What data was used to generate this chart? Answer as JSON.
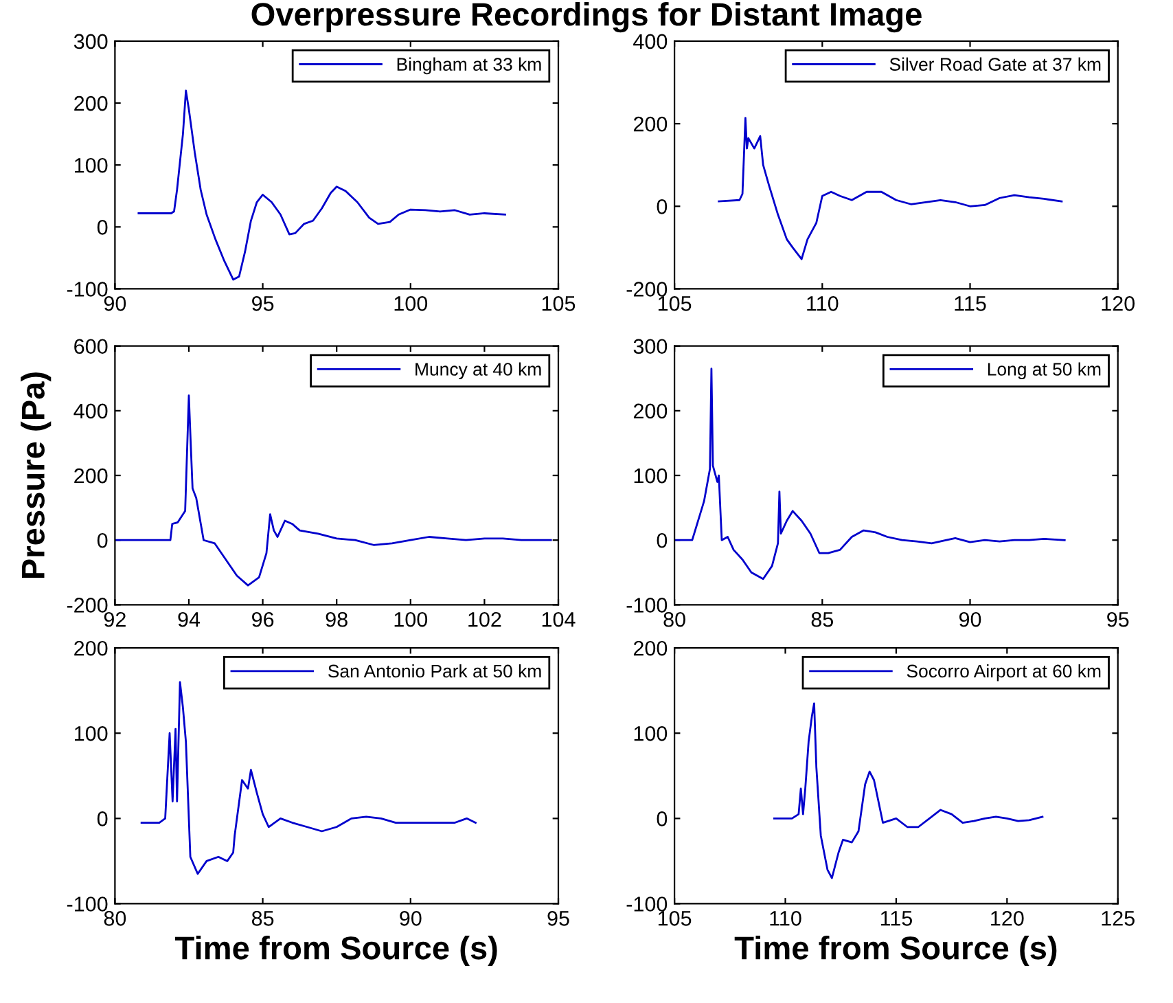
{
  "chart_data": [
    {
      "type": "line",
      "title": "Overpressure Recordings for Distant Image",
      "xlim": [
        90,
        105
      ],
      "ylim": [
        -100,
        300
      ],
      "xticks": [
        90,
        95,
        100,
        105
      ],
      "yticks": [
        -100,
        0,
        100,
        200,
        300
      ],
      "legend": "top right",
      "grid": false,
      "series": [
        {
          "name": "Bingham at 33 km",
          "color": "#0000cc",
          "x": [
            90.8,
            91.5,
            91.9,
            92.0,
            92.1,
            92.3,
            92.4,
            92.5,
            92.7,
            92.9,
            93.1,
            93.4,
            93.7,
            94.0,
            94.2,
            94.4,
            94.6,
            94.8,
            95.0,
            95.3,
            95.6,
            95.9,
            96.1,
            96.4,
            96.7,
            97.0,
            97.3,
            97.5,
            97.8,
            98.2,
            98.6,
            98.9,
            99.3,
            99.6,
            100.0,
            100.5,
            101.0,
            101.5,
            102.0,
            102.5,
            103.2
          ],
          "values": [
            22,
            22,
            22,
            25,
            60,
            150,
            220,
            190,
            120,
            60,
            20,
            -20,
            -55,
            -85,
            -80,
            -40,
            10,
            40,
            52,
            40,
            20,
            -12,
            -10,
            5,
            10,
            30,
            55,
            65,
            58,
            40,
            15,
            5,
            8,
            20,
            28,
            27,
            25,
            27,
            20,
            22,
            20
          ]
        }
      ]
    },
    {
      "type": "line",
      "xlim": [
        105,
        120
      ],
      "ylim": [
        -200,
        400
      ],
      "xticks": [
        105,
        110,
        115,
        120
      ],
      "yticks": [
        -200,
        0,
        200,
        400
      ],
      "legend": "top right",
      "grid": false,
      "series": [
        {
          "name": "Silver Road Gate at 37 km",
          "color": "#0000cc",
          "x": [
            106.5,
            107.2,
            107.3,
            107.4,
            107.45,
            107.5,
            107.7,
            107.9,
            108.0,
            108.2,
            108.5,
            108.8,
            109.0,
            109.3,
            109.5,
            109.8,
            110.0,
            110.3,
            110.6,
            111.0,
            111.5,
            112.0,
            112.5,
            113.0,
            113.5,
            114.0,
            114.5,
            115.0,
            115.5,
            116.0,
            116.5,
            117.0,
            117.5,
            118.1
          ],
          "values": [
            12,
            15,
            30,
            214,
            140,
            165,
            140,
            170,
            100,
            50,
            -20,
            -80,
            -100,
            -128,
            -80,
            -40,
            25,
            35,
            25,
            15,
            35,
            35,
            15,
            5,
            10,
            15,
            10,
            0,
            3,
            20,
            27,
            22,
            18,
            12
          ]
        }
      ]
    },
    {
      "type": "line",
      "ylabel": "Pressure (Pa)",
      "xlim": [
        92,
        104
      ],
      "ylim": [
        -200,
        600
      ],
      "xticks": [
        92,
        94,
        96,
        98,
        100,
        102,
        104
      ],
      "yticks": [
        -200,
        0,
        200,
        400,
        600
      ],
      "legend": "top right",
      "grid": false,
      "series": [
        {
          "name": "Muncy at 40 km",
          "color": "#0000cc",
          "x": [
            92,
            93.5,
            93.55,
            93.7,
            93.9,
            94.0,
            94.05,
            94.1,
            94.2,
            94.4,
            94.7,
            95.0,
            95.3,
            95.6,
            95.9,
            96.1,
            96.2,
            96.3,
            96.4,
            96.6,
            96.8,
            97.0,
            97.5,
            98.0,
            98.5,
            99.0,
            99.5,
            100.0,
            100.5,
            101.0,
            101.5,
            102.0,
            102.5,
            103.0,
            103.8
          ],
          "values": [
            0,
            0,
            50,
            55,
            90,
            447,
            300,
            160,
            130,
            0,
            -10,
            -60,
            -110,
            -140,
            -115,
            -40,
            80,
            30,
            10,
            60,
            50,
            30,
            20,
            5,
            0,
            -15,
            -10,
            0,
            10,
            5,
            0,
            5,
            5,
            0,
            0
          ]
        }
      ]
    },
    {
      "type": "line",
      "xlim": [
        80,
        95
      ],
      "ylim": [
        -100,
        300
      ],
      "xticks": [
        80,
        85,
        90,
        95
      ],
      "yticks": [
        -100,
        0,
        100,
        200,
        300
      ],
      "legend": "top right",
      "grid": false,
      "series": [
        {
          "name": "Long at 50 km",
          "color": "#0000cc",
          "x": [
            80,
            80.6,
            80.8,
            81.0,
            81.2,
            81.25,
            81.3,
            81.45,
            81.5,
            81.6,
            81.8,
            82.0,
            82.3,
            82.6,
            83.0,
            83.3,
            83.5,
            83.55,
            83.6,
            83.8,
            84.0,
            84.3,
            84.6,
            84.9,
            85.2,
            85.6,
            86.0,
            86.4,
            86.8,
            87.2,
            87.7,
            88.2,
            88.7,
            89.2,
            89.5,
            90.0,
            90.5,
            91.0,
            91.5,
            92.0,
            92.5,
            93.2
          ],
          "values": [
            0,
            0,
            30,
            60,
            110,
            265,
            115,
            90,
            100,
            0,
            5,
            -15,
            -30,
            -50,
            -60,
            -40,
            -5,
            75,
            10,
            30,
            45,
            30,
            10,
            -20,
            -20,
            -15,
            5,
            15,
            12,
            5,
            0,
            -2,
            -5,
            0,
            3,
            -3,
            0,
            -2,
            0,
            0,
            2,
            0
          ]
        }
      ]
    },
    {
      "type": "line",
      "xlabel": "Time from Source (s)",
      "xlim": [
        80,
        95
      ],
      "ylim": [
        -100,
        200
      ],
      "xticks": [
        80,
        85,
        90,
        95
      ],
      "yticks": [
        -100,
        0,
        100,
        200
      ],
      "legend": "top right",
      "grid": false,
      "series": [
        {
          "name": "San Antonio Park at 50 km",
          "color": "#0000cc",
          "x": [
            80.9,
            81.5,
            81.7,
            81.85,
            81.95,
            82.05,
            82.1,
            82.2,
            82.3,
            82.4,
            82.55,
            82.8,
            83.1,
            83.5,
            83.8,
            84.0,
            84.05,
            84.3,
            84.5,
            84.6,
            84.8,
            85.0,
            85.2,
            85.6,
            86.0,
            86.5,
            87.0,
            87.5,
            88.0,
            88.5,
            89.0,
            89.5,
            90.0,
            90.5,
            91.0,
            91.5,
            91.9,
            92.2
          ],
          "values": [
            -5,
            -5,
            0,
            100,
            20,
            105,
            20,
            160,
            130,
            90,
            -45,
            -65,
            -50,
            -45,
            -50,
            -40,
            -20,
            45,
            35,
            57,
            30,
            5,
            -10,
            0,
            -5,
            -10,
            -15,
            -10,
            0,
            2,
            0,
            -5,
            -5,
            -5,
            -5,
            -5,
            0,
            -5
          ]
        }
      ]
    },
    {
      "type": "line",
      "xlabel": "Time from Source (s)",
      "xlim": [
        105,
        125
      ],
      "ylim": [
        -100,
        200
      ],
      "xticks": [
        105,
        110,
        115,
        120,
        125
      ],
      "yticks": [
        -100,
        0,
        100,
        200
      ],
      "legend": "top right",
      "grid": false,
      "series": [
        {
          "name": "Socorro Airport at 60 km",
          "color": "#0000cc",
          "x": [
            109.5,
            110.3,
            110.6,
            110.7,
            110.8,
            110.9,
            111.05,
            111.2,
            111.3,
            111.4,
            111.6,
            111.9,
            112.1,
            112.4,
            112.6,
            113.0,
            113.3,
            113.6,
            113.8,
            114.0,
            114.2,
            114.4,
            115.0,
            115.5,
            116.0,
            116.5,
            117.0,
            117.5,
            118.0,
            118.5,
            119.0,
            119.5,
            120.0,
            120.5,
            121.0,
            121.6
          ],
          "values": [
            0,
            0,
            5,
            35,
            5,
            35,
            90,
            120,
            135,
            60,
            -20,
            -60,
            -70,
            -40,
            -25,
            -28,
            -15,
            40,
            55,
            45,
            20,
            -5,
            0,
            -10,
            -10,
            0,
            10,
            5,
            -5,
            -3,
            0,
            2,
            0,
            -3,
            -2,
            2
          ]
        }
      ]
    }
  ]
}
